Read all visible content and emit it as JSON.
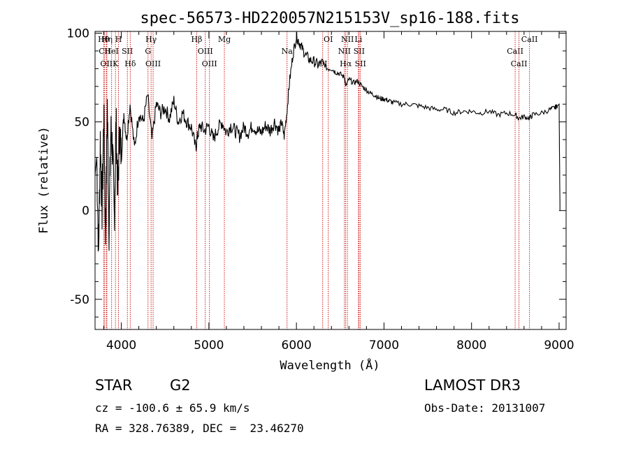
{
  "chart_data": {
    "type": "line",
    "title": "spec-56573-HD220057N215153V_sp16-188.fits",
    "xlabel": "Wavelength (Å)",
    "ylabel": "Flux (relative)",
    "xlim": [
      3700,
      9080
    ],
    "ylim": [
      -67,
      101
    ],
    "xticks": [
      4000,
      5000,
      6000,
      7000,
      8000,
      9000
    ],
    "yticks": [
      -50,
      0,
      50,
      100
    ],
    "series": [
      {
        "name": "flux",
        "x": [
          3700,
          3720,
          3740,
          3760,
          3780,
          3800,
          3820,
          3840,
          3860,
          3880,
          3900,
          3920,
          3940,
          3960,
          3980,
          4000,
          4030,
          4060,
          4100,
          4150,
          4200,
          4250,
          4300,
          4350,
          4400,
          4450,
          4500,
          4550,
          4600,
          4650,
          4700,
          4750,
          4800,
          4850,
          4870,
          4900,
          4950,
          5000,
          5050,
          5100,
          5150,
          5200,
          5250,
          5300,
          5350,
          5400,
          5450,
          5500,
          5550,
          5600,
          5650,
          5700,
          5750,
          5800,
          5830,
          5860,
          5890,
          5920,
          5960,
          6000,
          6030,
          6060,
          6100,
          6150,
          6200,
          6250,
          6300,
          6350,
          6400,
          6450,
          6500,
          6550,
          6563,
          6600,
          6650,
          6700,
          6750,
          6800,
          6850,
          6900,
          6950,
          7000,
          7050,
          7100,
          7200,
          7300,
          7400,
          7500,
          7600,
          7700,
          7800,
          7900,
          8000,
          8100,
          8200,
          8300,
          8400,
          8500,
          8540,
          8600,
          8662,
          8700,
          8800,
          8900,
          8950,
          8980,
          9000,
          9005,
          9010
        ],
        "y": [
          20,
          30,
          -25,
          40,
          0,
          55,
          -15,
          60,
          -10,
          45,
          35,
          -5,
          50,
          10,
          45,
          30,
          55,
          40,
          60,
          35,
          55,
          50,
          65,
          40,
          60,
          55,
          58,
          52,
          62,
          50,
          55,
          50,
          47,
          35,
          42,
          48,
          45,
          48,
          40,
          46,
          50,
          44,
          48,
          45,
          42,
          47,
          44,
          48,
          45,
          44,
          48,
          45,
          50,
          45,
          50,
          42,
          55,
          72,
          88,
          98,
          95,
          92,
          88,
          85,
          84,
          82,
          84,
          80,
          80,
          78,
          77,
          75,
          70,
          74,
          72,
          73,
          70,
          68,
          66,
          65,
          63,
          63,
          62,
          61,
          60,
          60,
          59,
          58,
          57,
          57,
          55,
          56,
          56,
          55,
          56,
          54,
          55,
          54,
          52,
          53,
          52,
          54,
          55,
          57,
          58,
          59,
          60,
          30,
          0
        ]
      }
    ],
    "line_markers": [
      {
        "name": "Hθ",
        "wavelength": 3798
      },
      {
        "name": "CII",
        "wavelength": 3810
      },
      {
        "name": "OII",
        "wavelength": 3830
      },
      {
        "name": "Hη",
        "wavelength": 3835
      },
      {
        "name": "HeI",
        "wavelength": 3889
      },
      {
        "name": "K",
        "wavelength": 3933
      },
      {
        "name": "H",
        "wavelength": 3968
      },
      {
        "name": "SII",
        "wavelength": 4069
      },
      {
        "name": "Hδ",
        "wavelength": 4102
      },
      {
        "name": "Hγ",
        "wavelength": 4340
      },
      {
        "name": "G",
        "wavelength": 4305
      },
      {
        "name": "OIII",
        "wavelength": 4363
      },
      {
        "name": "Hβ",
        "wavelength": 4861
      },
      {
        "name": "OIII",
        "wavelength": 4959
      },
      {
        "name": "OIII",
        "wavelength": 5007
      },
      {
        "name": "Mg",
        "wavelength": 5177
      },
      {
        "name": "Na",
        "wavelength": 5893
      },
      {
        "name": "OI",
        "wavelength": 6300
      },
      {
        "name": "OI",
        "wavelength": 6364
      },
      {
        "name": "NII",
        "wavelength": 6548
      },
      {
        "name": "Hα",
        "wavelength": 6563
      },
      {
        "name": "NII",
        "wavelength": 6583
      },
      {
        "name": "SII",
        "wavelength": 6716
      },
      {
        "name": "SII",
        "wavelength": 6731
      },
      {
        "name": "Li",
        "wavelength": 6708
      },
      {
        "name": "CaII",
        "wavelength": 8498
      },
      {
        "name": "CaII",
        "wavelength": 8542
      },
      {
        "name": "CaII",
        "wavelength": 8662
      }
    ],
    "colors": {
      "spectrum": "#000000",
      "markers": "#cc0000"
    }
  },
  "info": {
    "object_class": "STAR",
    "subclass": "G2",
    "survey": "LAMOST DR3",
    "redshift": "cz = -100.6 ± 65.9 km/s",
    "obs_date": "Obs-Date: 20131007",
    "coords": "RA = 328.76389, DEC =  23.46270"
  }
}
